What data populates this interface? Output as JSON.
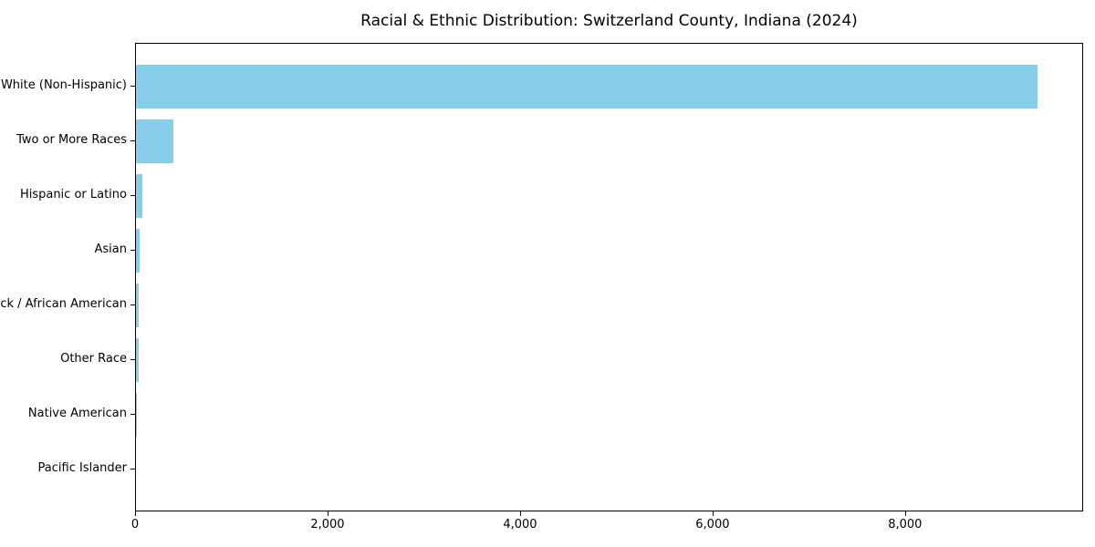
{
  "figure": {
    "title": "Racial & Ethnic Distribution: Switzerland County, Indiana (2024)",
    "background_color": "#ffffff",
    "spine_color": "#000000",
    "text_color": "#000000"
  },
  "chart_data": {
    "type": "bar",
    "orientation": "horizontal",
    "title": "Racial & Ethnic Distribution: Switzerland County, Indiana (2024)",
    "categories": [
      "White (Non-Hispanic)",
      "Two or More Races",
      "Hispanic or Latino",
      "Asian",
      "Black / African American",
      "Other Race",
      "Native American",
      "Pacific Islander"
    ],
    "values": [
      9365,
      390,
      70,
      40,
      30,
      25,
      10,
      0
    ],
    "xlabel": "",
    "ylabel": "",
    "xlim": [
      0,
      9850
    ],
    "xticks": [
      0,
      2000,
      4000,
      6000,
      8000
    ],
    "xtick_labels": [
      "0",
      "2,000",
      "4,000",
      "6,000",
      "8,000"
    ],
    "bar_color": "#87CEEB",
    "grid": false,
    "legend": null,
    "bar_fraction": 0.8,
    "axis_margin_fraction": 0.05
  }
}
